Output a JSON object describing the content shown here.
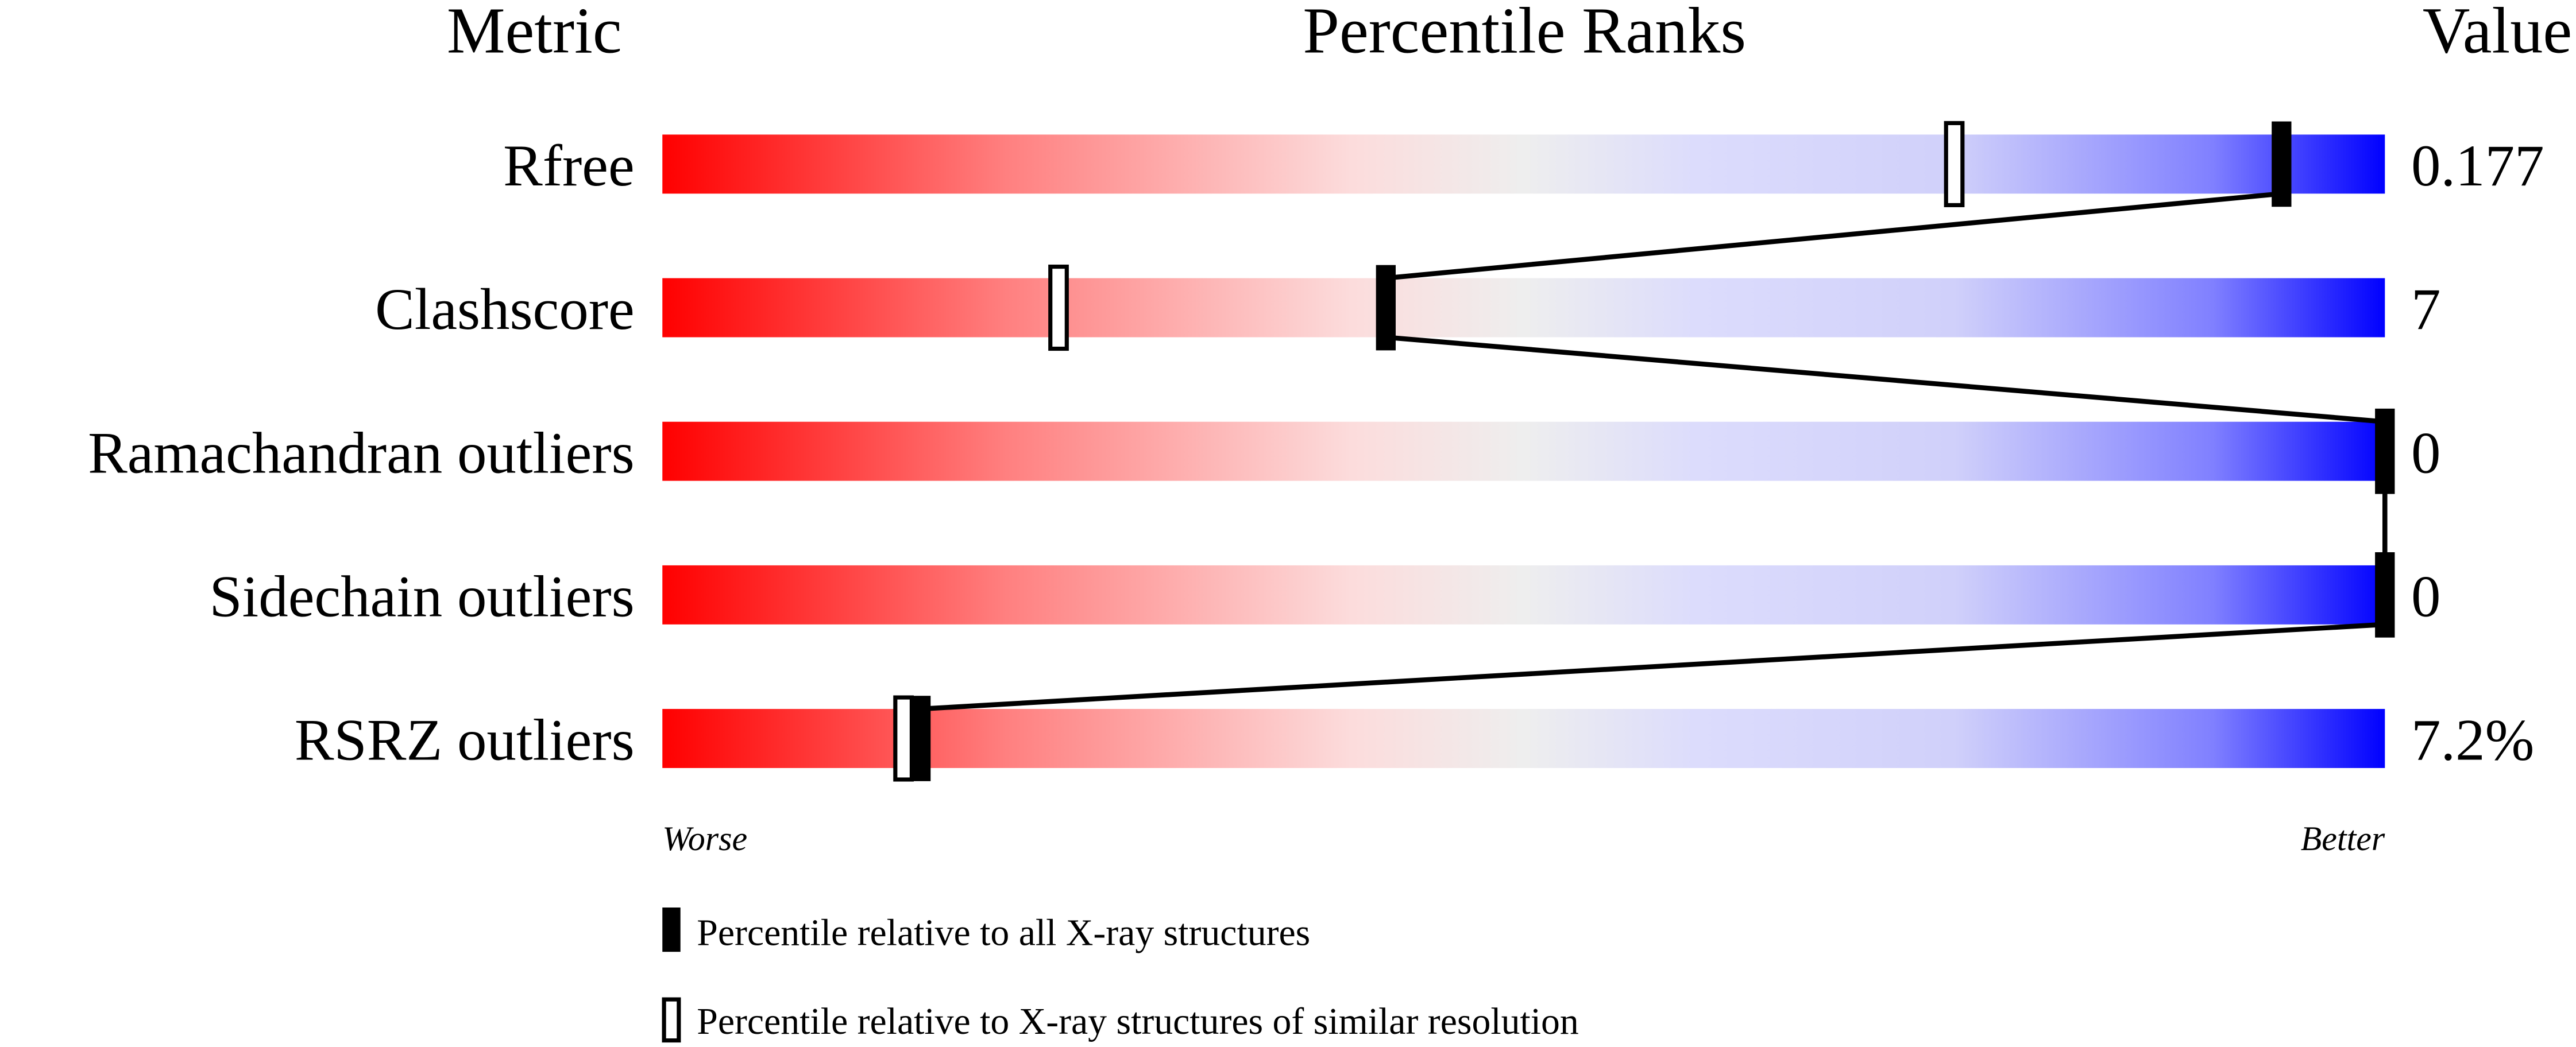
{
  "headers": {
    "metric": "Metric",
    "percentile": "Percentile Ranks",
    "value": "Value"
  },
  "axis": {
    "worse": "Worse",
    "better": "Better"
  },
  "legend": {
    "absolute": "Percentile relative to all X-ray structures",
    "relative": "Percentile relative to X-ray structures of similar resolution"
  },
  "chart_data": {
    "type": "bar",
    "xlim": [
      0,
      100
    ],
    "gradient_colors": [
      "#ff0000",
      "#ff8080",
      "#fcdcdc",
      "#eeeeee",
      "#dcdcfc",
      "#d0d0fa",
      "#8080ff",
      "#0000ff"
    ],
    "categories": [
      "Rfree",
      "Clashscore",
      "Ramachandran outliers",
      "Sidechain outliers",
      "RSRZ outliers"
    ],
    "values_display": [
      "0.177",
      "7",
      "0",
      "0",
      "7.2%"
    ],
    "series": [
      {
        "name": "Percentile relative to all X-ray structures",
        "values": [
          94,
          42,
          100,
          100,
          15
        ]
      },
      {
        "name": "Percentile relative to X-ray structures of similar resolution",
        "values": [
          75,
          23,
          null,
          null,
          14
        ]
      }
    ]
  }
}
